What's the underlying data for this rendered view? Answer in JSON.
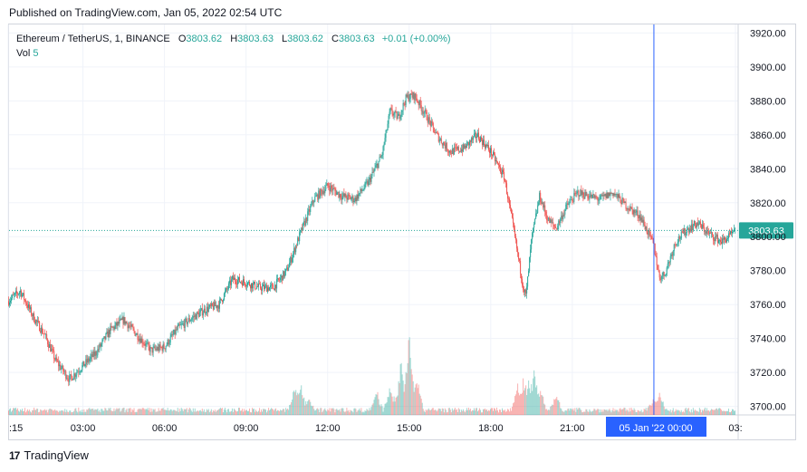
{
  "header": {
    "published_text": "Published on TradingView.com, Jan 05, 2022 02:54 UTC"
  },
  "legend": {
    "symbol": "Ethereum / TetherUS, 1, BINANCE",
    "o_label": "O",
    "o_value": "3803.62",
    "h_label": "H",
    "h_value": "3803.63",
    "l_label": "L",
    "l_value": "3803.62",
    "c_label": "C",
    "c_value": "3803.63",
    "change": "+0.01 (+0.00%)",
    "vol_label": "Vol",
    "vol_value": "5"
  },
  "footer": {
    "logo_icon": "tradingview-logo-icon",
    "logo_text": "TradingView"
  },
  "colors": {
    "up": "#26a69a",
    "down": "#ef5350",
    "crosshair": "#2962ff",
    "price_tag": "#26a69a",
    "grid": "#f0f3fa",
    "axis_text": "#131722"
  },
  "chart_data": {
    "type": "candlestick",
    "title": "",
    "xlabel": "",
    "ylabel": "",
    "y_ticks": [
      "3920.00",
      "3900.00",
      "3880.00",
      "3860.00",
      "3840.00",
      "3820.00",
      "3800.00",
      "3780.00",
      "3760.00",
      "3740.00",
      "3720.00",
      "3700.00"
    ],
    "ylim": [
      3695,
      3925
    ],
    "x_ticks": [
      ":15",
      "03:00",
      "06:00",
      "09:00",
      "12:00",
      "15:00",
      "18:00",
      "21:00",
      "03:"
    ],
    "x_tick_hours": [
      0.25,
      3,
      6,
      9,
      12,
      15,
      18,
      21,
      27
    ],
    "xlim_hours": [
      0.25,
      27
    ],
    "last_price": "3803.63",
    "last_price_value": 3803.63,
    "crosshair_label": "05 Jan '22   00:00",
    "crosshair_hour": 24,
    "price_path": [
      [
        0.25,
        3762
      ],
      [
        0.7,
        3768
      ],
      [
        1.2,
        3752
      ],
      [
        1.6,
        3742
      ],
      [
        2.0,
        3727
      ],
      [
        2.5,
        3716
      ],
      [
        3.0,
        3724
      ],
      [
        3.5,
        3732
      ],
      [
        4.0,
        3745
      ],
      [
        4.5,
        3751
      ],
      [
        5.0,
        3742
      ],
      [
        5.5,
        3733
      ],
      [
        6.0,
        3735
      ],
      [
        6.5,
        3746
      ],
      [
        7.0,
        3752
      ],
      [
        7.5,
        3757
      ],
      [
        8.0,
        3760
      ],
      [
        8.5,
        3775
      ],
      [
        9.0,
        3773
      ],
      [
        9.5,
        3770
      ],
      [
        10.0,
        3770
      ],
      [
        10.5,
        3780
      ],
      [
        11.0,
        3802
      ],
      [
        11.5,
        3822
      ],
      [
        12.0,
        3830
      ],
      [
        12.5,
        3824
      ],
      [
        13.0,
        3822
      ],
      [
        13.5,
        3832
      ],
      [
        14.0,
        3848
      ],
      [
        14.3,
        3874
      ],
      [
        14.6,
        3870
      ],
      [
        14.9,
        3882
      ],
      [
        15.2,
        3883
      ],
      [
        15.6,
        3872
      ],
      [
        16.0,
        3860
      ],
      [
        16.5,
        3850
      ],
      [
        17.0,
        3852
      ],
      [
        17.5,
        3860
      ],
      [
        18.0,
        3850
      ],
      [
        18.5,
        3835
      ],
      [
        18.8,
        3808
      ],
      [
        19.0,
        3789
      ],
      [
        19.2,
        3770
      ],
      [
        19.3,
        3765
      ],
      [
        19.5,
        3798
      ],
      [
        19.8,
        3824
      ],
      [
        20.1,
        3810
      ],
      [
        20.4,
        3805
      ],
      [
        20.8,
        3818
      ],
      [
        21.2,
        3826
      ],
      [
        21.6,
        3824
      ],
      [
        22.0,
        3822
      ],
      [
        22.5,
        3826
      ],
      [
        23.0,
        3818
      ],
      [
        23.5,
        3812
      ],
      [
        24.0,
        3795
      ],
      [
        24.2,
        3776
      ],
      [
        24.4,
        3778
      ],
      [
        24.8,
        3797
      ],
      [
        25.2,
        3804
      ],
      [
        25.6,
        3808
      ],
      [
        26.0,
        3802
      ],
      [
        26.5,
        3797
      ],
      [
        27.0,
        3803
      ]
    ],
    "volume_spikes": [
      [
        10.8,
        0.3
      ],
      [
        11.0,
        0.35
      ],
      [
        11.3,
        0.2
      ],
      [
        13.8,
        0.25
      ],
      [
        14.3,
        0.35
      ],
      [
        14.7,
        0.6
      ],
      [
        15.0,
        1.0
      ],
      [
        15.3,
        0.4
      ],
      [
        19.0,
        0.35
      ],
      [
        19.2,
        0.45
      ],
      [
        19.4,
        0.4
      ],
      [
        19.6,
        0.55
      ],
      [
        19.8,
        0.3
      ],
      [
        20.4,
        0.2
      ],
      [
        24.0,
        0.15
      ],
      [
        24.2,
        0.2
      ]
    ]
  }
}
